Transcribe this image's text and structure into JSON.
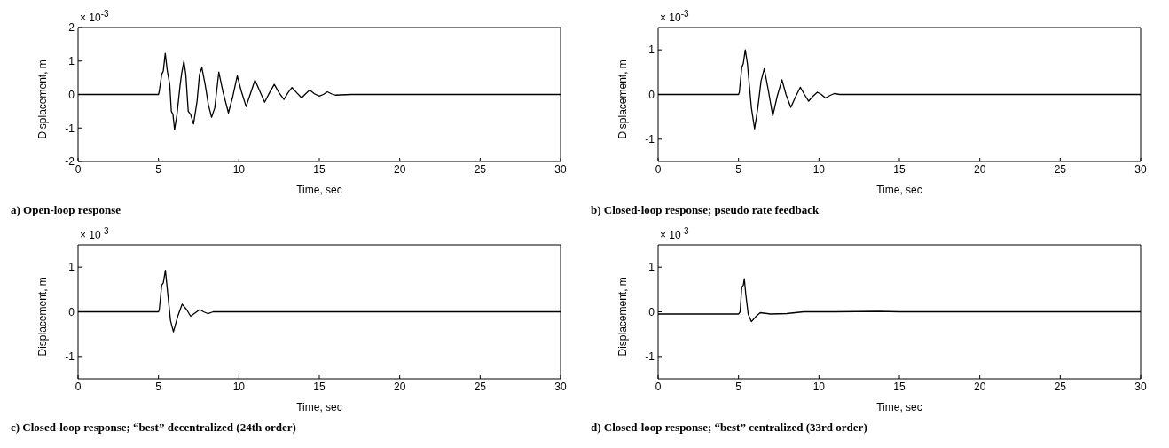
{
  "chart_data": [
    {
      "type": "line",
      "title": "a) Open-loop response",
      "xlabel": "Time, sec",
      "ylabel": "Displacement, m",
      "annotations": [
        "× 10$^{-3}$"
      ],
      "color": "#000000",
      "marker": "none",
      "line_style": "solid",
      "grid": false,
      "legend": false,
      "x": [
        0,
        5,
        5.05,
        5.2,
        5.3,
        5.42,
        5.55,
        5.7,
        5.8,
        5.9,
        6.0,
        6.15,
        6.35,
        6.45,
        6.58,
        6.7,
        6.85,
        7.0,
        7.18,
        7.4,
        7.55,
        7.7,
        7.9,
        8.1,
        8.3,
        8.5,
        8.75,
        9.0,
        9.35,
        9.6,
        9.9,
        10.15,
        10.45,
        10.7,
        11.0,
        11.3,
        11.6,
        11.9,
        12.2,
        12.5,
        12.8,
        13.05,
        13.3,
        13.6,
        13.9,
        14.15,
        14.4,
        14.7,
        15.0,
        15.25,
        15.5,
        15.75,
        16.0,
        17,
        20,
        25,
        30
      ],
      "values": [
        0,
        0,
        0.1,
        0.6,
        0.7,
        1.23,
        0.7,
        0.3,
        -0.5,
        -0.6,
        -1.05,
        -0.6,
        0.3,
        0.65,
        1.0,
        0.6,
        -0.5,
        -0.6,
        -0.88,
        -0.2,
        0.6,
        0.8,
        0.3,
        -0.3,
        -0.68,
        -0.4,
        0.67,
        0.1,
        -0.55,
        -0.1,
        0.56,
        0.1,
        -0.36,
        0.0,
        0.43,
        0.1,
        -0.23,
        0.05,
        0.3,
        0.05,
        -0.15,
        0.05,
        0.21,
        0.05,
        -0.1,
        0.02,
        0.13,
        0.02,
        -0.05,
        0.0,
        0.08,
        0.02,
        -0.02,
        0,
        0,
        0,
        0
      ],
      "xlim": [
        0,
        30
      ],
      "xticks": [
        0,
        5,
        10,
        15,
        20,
        25,
        30
      ],
      "ylim": [
        -2,
        2
      ],
      "yticks": [
        -2,
        -1,
        0,
        1,
        2
      ]
    },
    {
      "type": "line",
      "title": "b) Closed-loop response; pseudo rate feedback",
      "xlabel": "Time, sec",
      "ylabel": "Displacement, m",
      "annotations": [
        "× 10$^{-3}$"
      ],
      "color": "#000000",
      "marker": "none",
      "line_style": "solid",
      "grid": false,
      "legend": false,
      "x": [
        0,
        5,
        5.05,
        5.2,
        5.3,
        5.42,
        5.55,
        5.8,
        6.0,
        6.2,
        6.4,
        6.6,
        6.85,
        7.13,
        7.4,
        7.7,
        7.95,
        8.25,
        8.55,
        8.84,
        9.1,
        9.36,
        9.6,
        9.9,
        10.15,
        10.4,
        10.7,
        10.95,
        11.3,
        15,
        20,
        25,
        30
      ],
      "values": [
        0,
        0,
        0.05,
        0.6,
        0.7,
        1.0,
        0.7,
        -0.3,
        -0.77,
        -0.3,
        0.3,
        0.58,
        0.1,
        -0.48,
        -0.05,
        0.33,
        0.0,
        -0.29,
        -0.05,
        0.16,
        0.0,
        -0.15,
        -0.05,
        0.05,
        0.0,
        -0.08,
        -0.02,
        0.02,
        0,
        0,
        0,
        0,
        0
      ],
      "xlim": [
        0,
        30
      ],
      "xticks": [
        0,
        5,
        10,
        15,
        20,
        25,
        30
      ],
      "ylim": [
        -1.5,
        1.5
      ],
      "yticks": [
        -1,
        0,
        1
      ]
    },
    {
      "type": "line",
      "title": "c) Closed-loop response; “best” decentralized (24th order)",
      "xlabel": "Time, sec",
      "ylabel": "Displacement, m",
      "annotations": [
        "× 10$^{-3}$"
      ],
      "color": "#000000",
      "marker": "none",
      "line_style": "solid",
      "grid": false,
      "legend": false,
      "x": [
        0,
        5,
        5.05,
        5.2,
        5.3,
        5.43,
        5.55,
        5.75,
        5.93,
        6.2,
        6.47,
        6.75,
        7.0,
        7.3,
        7.57,
        7.8,
        8.07,
        8.4,
        10,
        15,
        20,
        25,
        30
      ],
      "values": [
        0,
        0,
        0.05,
        0.6,
        0.65,
        0.93,
        0.5,
        -0.2,
        -0.45,
        -0.1,
        0.17,
        0.05,
        -0.1,
        -0.02,
        0.05,
        0.0,
        -0.04,
        0,
        0,
        0,
        0,
        0,
        0
      ],
      "xlim": [
        0,
        30
      ],
      "xticks": [
        0,
        5,
        10,
        15,
        20,
        25,
        30
      ],
      "ylim": [
        -1.5,
        1.5
      ],
      "yticks": [
        -1,
        0,
        1
      ]
    },
    {
      "type": "line",
      "title": "d) Closed-loop response; “best” centralized (33rd order)",
      "xlabel": "Time, sec",
      "ylabel": "Displacement, m",
      "annotations": [
        "× 10$^{-3}$"
      ],
      "color": "#000000",
      "marker": "none",
      "line_style": "solid",
      "grid": false,
      "legend": false,
      "x": [
        0,
        5,
        5.1,
        5.2,
        5.3,
        5.36,
        5.45,
        5.6,
        5.8,
        6.1,
        6.35,
        7.0,
        8,
        9.05,
        11,
        13.7,
        15,
        20,
        25,
        30
      ],
      "values": [
        -0.05,
        -0.05,
        0.0,
        0.55,
        0.6,
        0.74,
        0.4,
        -0.05,
        -0.22,
        -0.1,
        -0.02,
        -0.05,
        -0.04,
        0,
        0,
        0.01,
        0,
        0,
        0,
        0
      ],
      "xlim": [
        0,
        30
      ],
      "xticks": [
        0,
        5,
        10,
        15,
        20,
        25,
        30
      ],
      "ylim": [
        -1.5,
        1.5
      ],
      "yticks": [
        -1,
        0,
        1
      ]
    }
  ]
}
